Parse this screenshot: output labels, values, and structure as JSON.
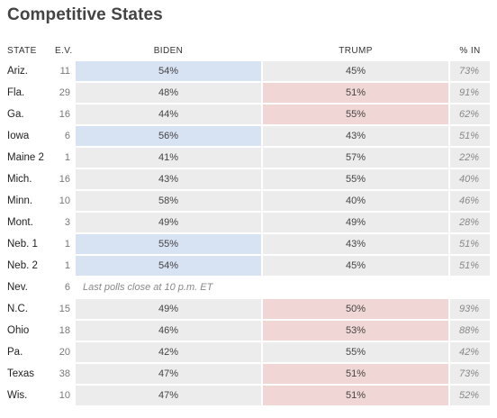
{
  "title": "Competitive States",
  "headers": {
    "state": "STATE",
    "ev": "E.V.",
    "biden": "BIDEN",
    "trump": "TRUMP",
    "pct_in": "% IN"
  },
  "colors": {
    "biden_lead": "#d7e2f2",
    "trump_lead": "#f0d7d5",
    "neutral": "#ececec"
  },
  "rows": [
    {
      "state": "Ariz.",
      "ev": "11",
      "biden": "54%",
      "trump": "45%",
      "pct_in": "73%",
      "leader": "biden"
    },
    {
      "state": "Fla.",
      "ev": "29",
      "biden": "48%",
      "trump": "51%",
      "pct_in": "91%",
      "leader": "trump"
    },
    {
      "state": "Ga.",
      "ev": "16",
      "biden": "44%",
      "trump": "55%",
      "pct_in": "62%",
      "leader": "trump"
    },
    {
      "state": "Iowa",
      "ev": "6",
      "biden": "56%",
      "trump": "43%",
      "pct_in": "51%",
      "leader": "biden"
    },
    {
      "state": "Maine 2",
      "ev": "1",
      "biden": "41%",
      "trump": "57%",
      "pct_in": "22%",
      "leader": "none"
    },
    {
      "state": "Mich.",
      "ev": "16",
      "biden": "43%",
      "trump": "55%",
      "pct_in": "40%",
      "leader": "none"
    },
    {
      "state": "Minn.",
      "ev": "10",
      "biden": "58%",
      "trump": "40%",
      "pct_in": "46%",
      "leader": "none"
    },
    {
      "state": "Mont.",
      "ev": "3",
      "biden": "49%",
      "trump": "49%",
      "pct_in": "28%",
      "leader": "none"
    },
    {
      "state": "Neb. 1",
      "ev": "1",
      "biden": "55%",
      "trump": "43%",
      "pct_in": "51%",
      "leader": "biden"
    },
    {
      "state": "Neb. 2",
      "ev": "1",
      "biden": "54%",
      "trump": "45%",
      "pct_in": "51%",
      "leader": "biden"
    },
    {
      "state": "Nev.",
      "ev": "6",
      "note": "Last polls close at 10 p.m. ET",
      "leader": "nodata"
    },
    {
      "state": "N.C.",
      "ev": "15",
      "biden": "49%",
      "trump": "50%",
      "pct_in": "93%",
      "leader": "trump"
    },
    {
      "state": "Ohio",
      "ev": "18",
      "biden": "46%",
      "trump": "53%",
      "pct_in": "88%",
      "leader": "trump"
    },
    {
      "state": "Pa.",
      "ev": "20",
      "biden": "42%",
      "trump": "55%",
      "pct_in": "42%",
      "leader": "none"
    },
    {
      "state": "Texas",
      "ev": "38",
      "biden": "47%",
      "trump": "51%",
      "pct_in": "73%",
      "leader": "trump"
    },
    {
      "state": "Wis.",
      "ev": "10",
      "biden": "47%",
      "trump": "51%",
      "pct_in": "52%",
      "leader": "trump"
    }
  ]
}
